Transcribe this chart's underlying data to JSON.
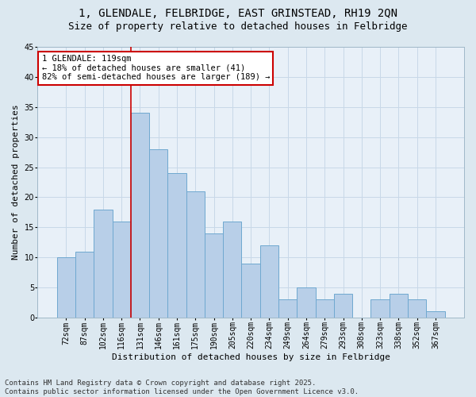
{
  "title_line1": "1, GLENDALE, FELBRIDGE, EAST GRINSTEAD, RH19 2QN",
  "title_line2": "Size of property relative to detached houses in Felbridge",
  "xlabel": "Distribution of detached houses by size in Felbridge",
  "ylabel": "Number of detached properties",
  "categories": [
    "72sqm",
    "87sqm",
    "102sqm",
    "116sqm",
    "131sqm",
    "146sqm",
    "161sqm",
    "175sqm",
    "190sqm",
    "205sqm",
    "220sqm",
    "234sqm",
    "249sqm",
    "264sqm",
    "279sqm",
    "293sqm",
    "308sqm",
    "323sqm",
    "338sqm",
    "352sqm",
    "367sqm"
  ],
  "values": [
    10,
    11,
    18,
    16,
    34,
    28,
    24,
    21,
    14,
    16,
    9,
    12,
    3,
    5,
    3,
    4,
    0,
    3,
    4,
    3,
    1
  ],
  "bar_color": "#b8cfe8",
  "bar_edge_color": "#6fa8d0",
  "vline_x": 3.5,
  "vline_color": "#cc0000",
  "annotation_title": "1 GLENDALE: 119sqm",
  "annotation_line1": "← 18% of detached houses are smaller (41)",
  "annotation_line2": "82% of semi-detached houses are larger (189) →",
  "annotation_box_color": "#ffffff",
  "annotation_box_edge": "#cc0000",
  "grid_color": "#c8d8e8",
  "bg_color": "#dce8f0",
  "plot_bg_color": "#e8f0f8",
  "ylim": [
    0,
    45
  ],
  "yticks": [
    0,
    5,
    10,
    15,
    20,
    25,
    30,
    35,
    40,
    45
  ],
  "title_fontsize": 10,
  "subtitle_fontsize": 9,
  "tick_fontsize": 7,
  "ylabel_fontsize": 8,
  "xlabel_fontsize": 8,
  "annotation_fontsize": 7.5,
  "footnote_fontsize": 6.5,
  "footnote_line1": "Contains HM Land Registry data © Crown copyright and database right 2025.",
  "footnote_line2": "Contains public sector information licensed under the Open Government Licence v3.0."
}
